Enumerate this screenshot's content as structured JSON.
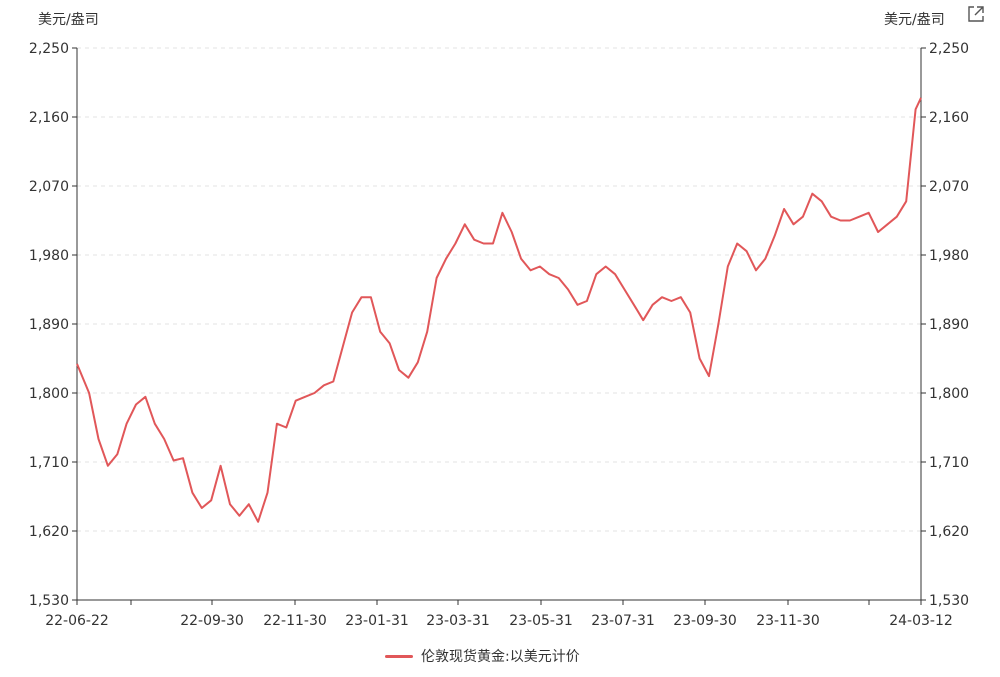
{
  "chart_data": {
    "type": "line",
    "title": "",
    "y_unit_label": "美元/盎司",
    "ylim": [
      1530,
      2250
    ],
    "y_ticks": [
      "1,530",
      "1,620",
      "1,710",
      "1,800",
      "1,890",
      "1,980",
      "2,070",
      "2,160",
      "2,250"
    ],
    "x_ticks": [
      "22-06-22",
      "22-09-30",
      "22-11-30",
      "23-01-31",
      "23-03-31",
      "23-05-31",
      "23-07-31",
      "23-09-30",
      "23-11-30",
      "24-03-12"
    ],
    "grid": true,
    "legend_position": "bottom",
    "line_color": "#e15759",
    "series": [
      {
        "name": "伦敦现货黄金:以美元计价",
        "x": [
          "2022-06-22",
          "2022-07-01",
          "2022-07-08",
          "2022-07-15",
          "2022-07-22",
          "2022-07-29",
          "2022-08-05",
          "2022-08-12",
          "2022-08-19",
          "2022-08-26",
          "2022-09-02",
          "2022-09-09",
          "2022-09-16",
          "2022-09-23",
          "2022-09-30",
          "2022-10-07",
          "2022-10-14",
          "2022-10-21",
          "2022-10-28",
          "2022-11-04",
          "2022-11-11",
          "2022-11-18",
          "2022-11-25",
          "2022-12-02",
          "2022-12-09",
          "2022-12-16",
          "2022-12-23",
          "2022-12-30",
          "2023-01-06",
          "2023-01-13",
          "2023-01-20",
          "2023-01-27",
          "2023-02-03",
          "2023-02-10",
          "2023-02-17",
          "2023-02-24",
          "2023-03-03",
          "2023-03-10",
          "2023-03-17",
          "2023-03-24",
          "2023-03-31",
          "2023-04-07",
          "2023-04-14",
          "2023-04-21",
          "2023-04-28",
          "2023-05-05",
          "2023-05-12",
          "2023-05-19",
          "2023-05-26",
          "2023-06-02",
          "2023-06-09",
          "2023-06-16",
          "2023-06-23",
          "2023-06-30",
          "2023-07-07",
          "2023-07-14",
          "2023-07-21",
          "2023-07-28",
          "2023-08-04",
          "2023-08-11",
          "2023-08-18",
          "2023-08-25",
          "2023-09-01",
          "2023-09-08",
          "2023-09-15",
          "2023-09-22",
          "2023-09-29",
          "2023-10-06",
          "2023-10-13",
          "2023-10-20",
          "2023-10-27",
          "2023-11-03",
          "2023-11-10",
          "2023-11-17",
          "2023-11-24",
          "2023-12-01",
          "2023-12-08",
          "2023-12-15",
          "2023-12-22",
          "2023-12-29",
          "2024-01-05",
          "2024-01-12",
          "2024-01-19",
          "2024-01-26",
          "2024-02-02",
          "2024-02-09",
          "2024-02-16",
          "2024-02-23",
          "2024-03-01",
          "2024-03-08",
          "2024-03-12"
        ],
        "values": [
          1838,
          1800,
          1740,
          1705,
          1720,
          1760,
          1785,
          1795,
          1760,
          1740,
          1712,
          1715,
          1670,
          1650,
          1660,
          1705,
          1655,
          1640,
          1655,
          1632,
          1670,
          1760,
          1755,
          1790,
          1795,
          1800,
          1810,
          1815,
          1860,
          1905,
          1925,
          1925,
          1880,
          1865,
          1830,
          1820,
          1840,
          1880,
          1950,
          1975,
          1995,
          2020,
          2000,
          1995,
          1995,
          2035,
          2010,
          1975,
          1960,
          1965,
          1955,
          1950,
          1935,
          1915,
          1920,
          1955,
          1965,
          1955,
          1935,
          1915,
          1895,
          1915,
          1925,
          1920,
          1925,
          1905,
          1845,
          1822,
          1890,
          1965,
          1995,
          1985,
          1960,
          1975,
          2005,
          2040,
          2020,
          2030,
          2060,
          2050,
          2030,
          2025,
          2025,
          2030,
          2035,
          2010,
          2020,
          2030,
          2050,
          2170,
          2185
        ]
      }
    ]
  },
  "ui": {
    "unit_left": "美元/盎司",
    "unit_right": "美元/盎司",
    "legend_label": "伦敦现货黄金:以美元计价",
    "export_icon": "external-link-icon"
  }
}
